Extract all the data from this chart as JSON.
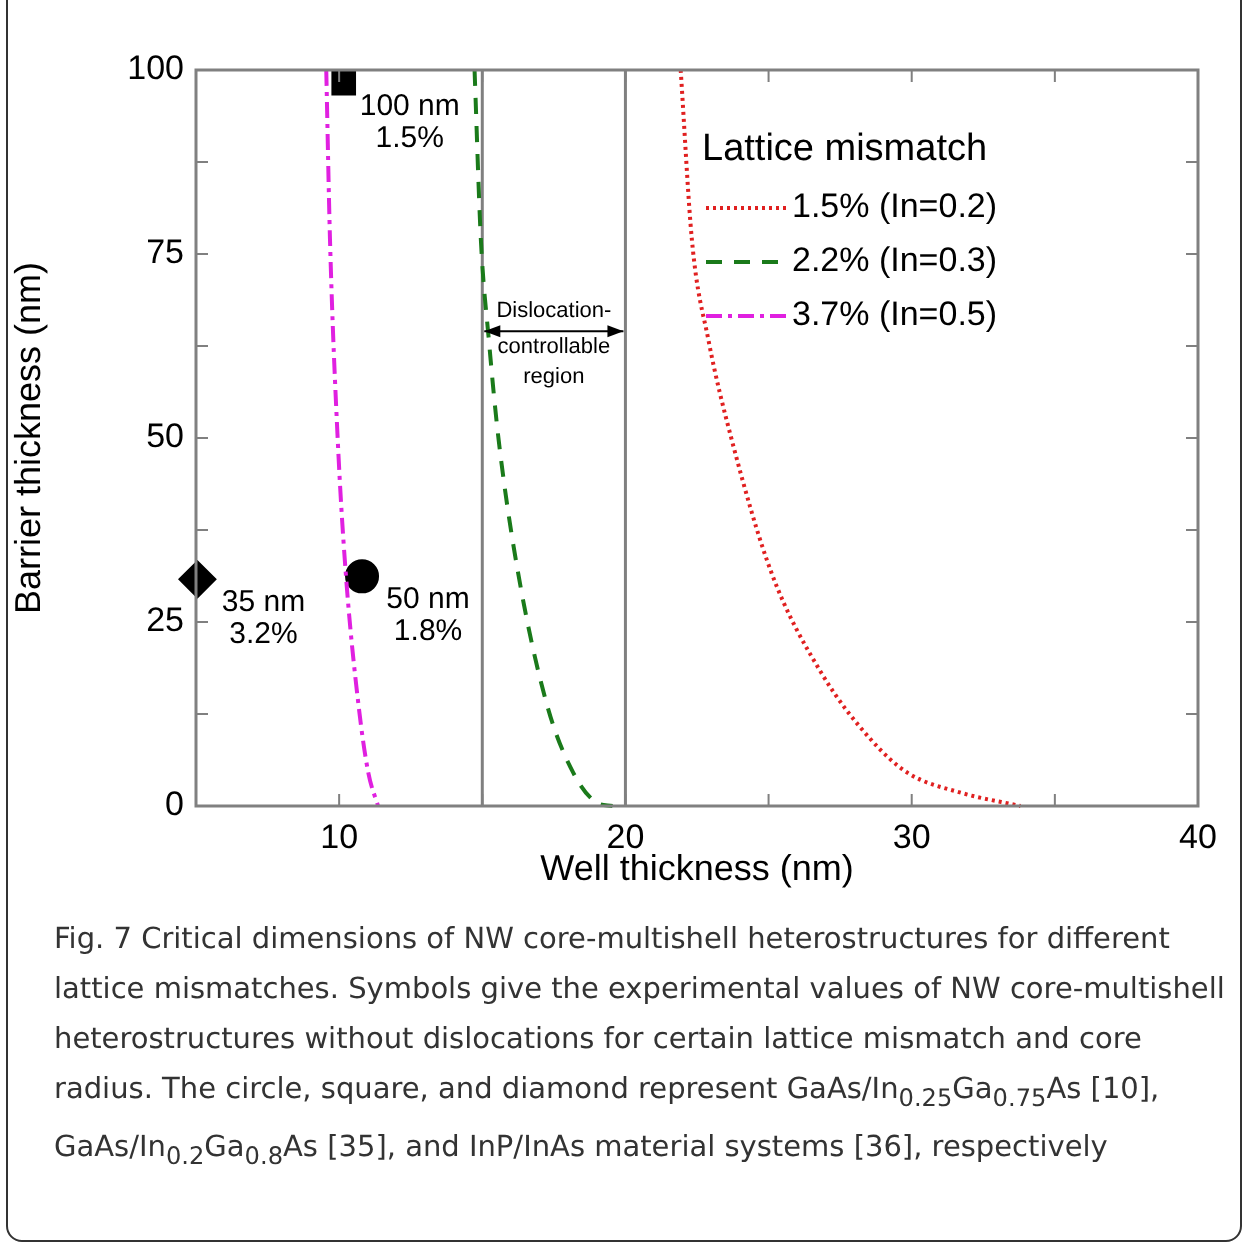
{
  "chart_data": {
    "type": "line",
    "xlabel": "Well thickness (nm)",
    "ylabel": "Barrier thickness (nm)",
    "legend_title": "Lattice mismatch",
    "legend": "top right",
    "grid": false,
    "xlim": [
      5,
      40
    ],
    "xticks": [
      {
        "value": 5,
        "label": null
      },
      10,
      {
        "value": 15,
        "label": null
      },
      20,
      {
        "value": 25,
        "label": null
      },
      30,
      {
        "value": 35,
        "label": null
      },
      40
    ],
    "ylim": [
      0,
      100
    ],
    "yticks": [
      0,
      {
        "value": 12.5,
        "label": null
      },
      25,
      {
        "value": 37.5,
        "label": null
      },
      50,
      {
        "value": 62.5,
        "label": null
      },
      75,
      {
        "value": 87.5,
        "label": null
      },
      100
    ],
    "series": [
      {
        "name": "1.5% (In=0.2)",
        "color": "#e02020",
        "line_style": "dotted",
        "marker": "none",
        "x": [
          21.93,
          22.32,
          22.9,
          23.71,
          25.1,
          26.84,
          28.58,
          29.86,
          31.72,
          33.8
        ],
        "values": [
          100,
          77,
          63.3,
          49.8,
          31.7,
          18.1,
          9,
          4.5,
          1.8,
          0
        ]
      },
      {
        "name": "2.2% (In=0.3)",
        "color": "#1a7a1a",
        "line_style": "dashed",
        "marker": "none",
        "x": [
          14.73,
          14.95,
          15.23,
          15.57,
          16.25,
          17.27,
          18.18,
          18.98,
          19.55
        ],
        "values": [
          100,
          77,
          63.3,
          49.8,
          31.7,
          13.6,
          4.5,
          0.5,
          0
        ]
      },
      {
        "name": "3.7% (In=0.5)",
        "color": "#e020e0",
        "line_style": "dashdot",
        "marker": "none",
        "x": [
          9.55,
          9.68,
          9.95,
          10.23,
          10.68,
          11.02,
          11.36
        ],
        "values": [
          100,
          77,
          49.8,
          31.7,
          13.6,
          4.5,
          0
        ]
      },
      {
        "type": "scatter",
        "color": "#000000",
        "marker": "square",
        "x": [
          10.16
        ],
        "values": [
          98.2
        ]
      },
      {
        "type": "scatter",
        "color": "#000000",
        "marker": "circle",
        "x": [
          10.8
        ],
        "values": [
          31.2
        ]
      },
      {
        "type": "scatter",
        "color": "#000000",
        "marker": "diamond",
        "x": [
          5.05
        ],
        "values": [
          30.8
        ]
      }
    ],
    "ref_lines": [
      {
        "axis": "x",
        "value": 15,
        "color": "#808080"
      },
      {
        "axis": "x",
        "value": 20,
        "color": "#808080"
      }
    ],
    "annotations": [
      {
        "text": "100 nm\n1.5%",
        "x": 10.16,
        "y": 98.2
      },
      {
        "text": "50 nm\n1.8%",
        "x": 10.8,
        "y": 31.2
      },
      {
        "text": "35 nm\n3.2%",
        "x": 5.05,
        "y": 30.8
      },
      "Dislocation-\ncontrollable\nregion",
      "Fig. 7 Critical dimensions of NW core-multishell heterostructures for different lattice mismatches. Symbols give the experimental values of NW core-multishell heterostructures without dislocations for certain lattice mismatch and core radius. The circle, square, and diamond represent GaAs/In$_{0.25}$Ga$_{0.75}$As [10], GaAs/In$_{0.2}$Ga$_{0.8}$As [35], and InP/InAs material systems [36], respectively"
    ]
  }
}
